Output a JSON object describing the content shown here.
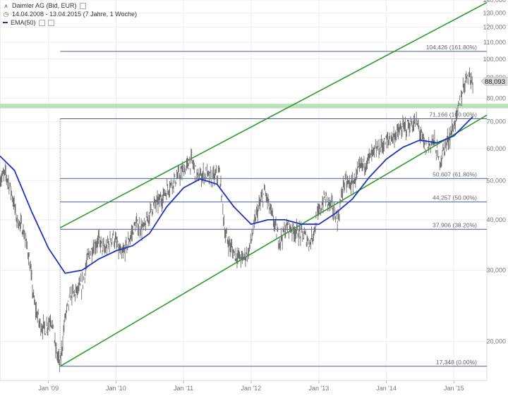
{
  "header": {
    "instrument": "Daimler AG (Bid, EUR)",
    "period": "14.04.2008 - 13.04.2015 (7 Jahre, 1 Woche)",
    "indicator": "EMA(50)"
  },
  "colors": {
    "price": "#6e6e6e",
    "ema": "#2233bb",
    "channel": "#2e9a2e",
    "fib": "#33478c",
    "resistance_band": "#b5ddb5",
    "axis_text": "#777777",
    "grid": "#eeeeee",
    "current_badge": "#d8d8d8"
  },
  "chart_data": {
    "type": "line",
    "title": "Daimler AG (Bid, EUR)",
    "subtitle": "14.04.2008 - 13.04.2015 (7 Jahre, 1 Woche)",
    "y_scale": "log",
    "ylim": [
      16000,
      140000
    ],
    "xlim": [
      "2008-04-14",
      "2015-06-28"
    ],
    "y_ticks": [
      {
        "value": 20000,
        "label": "20,000"
      },
      {
        "value": 30000,
        "label": "30,000"
      },
      {
        "value": 40000,
        "label": "40,000"
      },
      {
        "value": 50000,
        "label": "50,000"
      },
      {
        "value": 60000,
        "label": "60,000"
      },
      {
        "value": 70000,
        "label": "70,000"
      },
      {
        "value": 80000,
        "label": "80,000"
      },
      {
        "value": 90000,
        "label": "90,000"
      },
      {
        "value": 100000,
        "label": "100,000"
      },
      {
        "value": 110000,
        "label": "110,000"
      },
      {
        "value": 120000,
        "label": "120,000"
      },
      {
        "value": 130000,
        "label": "130,000"
      },
      {
        "value": 140000,
        "label": "140,000"
      }
    ],
    "x_ticks": [
      {
        "date": "2009-01-01",
        "label": "Jan '09"
      },
      {
        "date": "2010-01-01",
        "label": "Jan '10"
      },
      {
        "date": "2011-01-01",
        "label": "Jan '11"
      },
      {
        "date": "2012-01-01",
        "label": "Jan '12"
      },
      {
        "date": "2013-01-01",
        "label": "Jan '13"
      },
      {
        "date": "2014-01-01",
        "label": "Jan '14"
      },
      {
        "date": "2015-01-01",
        "label": "Jan '15"
      }
    ],
    "series": [
      {
        "name": "Daimler AG (Bid, EUR)",
        "points": [
          [
            "2008-04-14",
            50500
          ],
          [
            "2008-05-15",
            52000
          ],
          [
            "2008-06-15",
            47000
          ],
          [
            "2008-07-15",
            40000
          ],
          [
            "2008-08-15",
            38000
          ],
          [
            "2008-09-15",
            33000
          ],
          [
            "2008-10-15",
            25000
          ],
          [
            "2008-11-15",
            22000
          ],
          [
            "2008-12-15",
            21500
          ],
          [
            "2009-01-15",
            23000
          ],
          [
            "2009-02-10",
            19000
          ],
          [
            "2009-03-05",
            17500
          ],
          [
            "2009-04-01",
            23000
          ],
          [
            "2009-05-01",
            26000
          ],
          [
            "2009-06-01",
            26500
          ],
          [
            "2009-07-01",
            27500
          ],
          [
            "2009-08-01",
            32000
          ],
          [
            "2009-09-01",
            34500
          ],
          [
            "2009-10-01",
            35500
          ],
          [
            "2009-11-01",
            33500
          ],
          [
            "2009-12-15",
            36500
          ],
          [
            "2010-02-01",
            32500
          ],
          [
            "2010-03-01",
            34500
          ],
          [
            "2010-04-15",
            39000
          ],
          [
            "2010-06-01",
            38000
          ],
          [
            "2010-07-15",
            43000
          ],
          [
            "2010-09-01",
            45000
          ],
          [
            "2010-10-15",
            48500
          ],
          [
            "2010-12-01",
            51000
          ],
          [
            "2011-01-15",
            54000
          ],
          [
            "2011-02-15",
            56000
          ],
          [
            "2011-03-15",
            51000
          ],
          [
            "2011-05-01",
            52000
          ],
          [
            "2011-06-01",
            50500
          ],
          [
            "2011-07-15",
            52000
          ],
          [
            "2011-08-15",
            36500
          ],
          [
            "2011-10-01",
            33000
          ],
          [
            "2011-11-15",
            32000
          ],
          [
            "2011-12-20",
            33500
          ],
          [
            "2012-02-01",
            41500
          ],
          [
            "2012-03-15",
            47000
          ],
          [
            "2012-04-15",
            42000
          ],
          [
            "2012-06-01",
            35500
          ],
          [
            "2012-07-15",
            38500
          ],
          [
            "2012-09-01",
            37500
          ],
          [
            "2012-10-15",
            36500
          ],
          [
            "2012-11-15",
            35000
          ],
          [
            "2012-12-20",
            40000
          ],
          [
            "2013-02-01",
            45500
          ],
          [
            "2013-03-15",
            43000
          ],
          [
            "2013-04-15",
            40000
          ],
          [
            "2013-05-15",
            49500
          ],
          [
            "2013-07-01",
            49000
          ],
          [
            "2013-08-15",
            54000
          ],
          [
            "2013-10-01",
            57000
          ],
          [
            "2013-11-15",
            60000
          ],
          [
            "2014-01-01",
            62500
          ],
          [
            "2014-02-01",
            64000
          ],
          [
            "2014-03-15",
            66500
          ],
          [
            "2014-05-01",
            68500
          ],
          [
            "2014-06-15",
            69500
          ],
          [
            "2014-08-01",
            60000
          ],
          [
            "2014-09-15",
            63000
          ],
          [
            "2014-10-15",
            55500
          ],
          [
            "2014-11-15",
            61000
          ],
          [
            "2014-12-15",
            65500
          ],
          [
            "2015-01-15",
            71500
          ],
          [
            "2015-02-15",
            83000
          ],
          [
            "2015-03-15",
            92500
          ],
          [
            "2015-04-13",
            88093
          ]
        ]
      },
      {
        "name": "EMA(50)",
        "points": [
          [
            "2008-04-14",
            57500
          ],
          [
            "2008-07-01",
            53000
          ],
          [
            "2008-10-01",
            42000
          ],
          [
            "2009-01-01",
            34000
          ],
          [
            "2009-04-01",
            29500
          ],
          [
            "2009-07-01",
            30000
          ],
          [
            "2009-10-01",
            32000
          ],
          [
            "2010-01-01",
            33500
          ],
          [
            "2010-04-01",
            34500
          ],
          [
            "2010-07-01",
            37000
          ],
          [
            "2010-10-01",
            43000
          ],
          [
            "2011-01-01",
            48000
          ],
          [
            "2011-04-01",
            50500
          ],
          [
            "2011-07-01",
            49000
          ],
          [
            "2011-10-01",
            43000
          ],
          [
            "2012-01-01",
            39000
          ],
          [
            "2012-04-01",
            40000
          ],
          [
            "2012-07-01",
            40000
          ],
          [
            "2012-10-01",
            39000
          ],
          [
            "2013-01-01",
            39000
          ],
          [
            "2013-04-01",
            41500
          ],
          [
            "2013-07-01",
            45000
          ],
          [
            "2013-10-01",
            51000
          ],
          [
            "2014-01-01",
            56500
          ],
          [
            "2014-04-01",
            60500
          ],
          [
            "2014-07-01",
            63000
          ],
          [
            "2014-10-01",
            62000
          ],
          [
            "2015-01-01",
            64500
          ],
          [
            "2015-04-13",
            72000
          ]
        ]
      }
    ],
    "channel_lines": [
      {
        "from": [
          "2009-03-05",
          17348
        ],
        "to": [
          "2015-06-28",
          72600
        ]
      },
      {
        "from": [
          "2009-03-05",
          38200
        ],
        "to": [
          "2015-06-28",
          138000
        ]
      }
    ],
    "resistance_band": {
      "from": 75500,
      "to": 77500
    },
    "fib_levels": [
      {
        "value": 104426,
        "label": "104,426 (161.80%)"
      },
      {
        "value": 71166,
        "label": "71,166 (100.00%)"
      },
      {
        "value": 50607,
        "label": "50,607 (61.80%)"
      },
      {
        "value": 44257,
        "label": "44,257 (50.00%)"
      },
      {
        "value": 37906,
        "label": "37,906 (38.20%)"
      },
      {
        "value": 17348,
        "label": "17,348 (0.00%)"
      }
    ],
    "fib_start_date": "2009-03-05",
    "current_price": {
      "value": 88093,
      "label": "88,093"
    }
  }
}
